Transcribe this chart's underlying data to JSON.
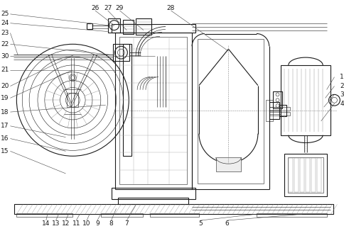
{
  "bg_color": "#ffffff",
  "line_color": "#1a1a1a",
  "gray_line": "#888888",
  "light_gray": "#cccccc",
  "fig_width": 4.85,
  "fig_height": 3.26,
  "dpi": 100,
  "left_labels": [
    [
      "25",
      7,
      308
    ],
    [
      "24",
      7,
      295
    ],
    [
      "23",
      7,
      281
    ],
    [
      "22",
      7,
      265
    ],
    [
      "30",
      7,
      248
    ],
    [
      "21",
      7,
      228
    ],
    [
      "20",
      7,
      205
    ],
    [
      "19",
      7,
      188
    ],
    [
      "18",
      7,
      168
    ],
    [
      "17",
      7,
      148
    ],
    [
      "16",
      7,
      130
    ],
    [
      "15",
      7,
      112
    ]
  ],
  "bottom_labels": [
    [
      "14",
      60,
      9
    ],
    [
      "13",
      74,
      9
    ],
    [
      "12",
      88,
      9
    ],
    [
      "11",
      103,
      9
    ],
    [
      "10",
      118,
      9
    ],
    [
      "9",
      133,
      9
    ],
    [
      "8",
      153,
      9
    ],
    [
      "7",
      175,
      9
    ]
  ],
  "top_labels": [
    [
      "26",
      130,
      316
    ],
    [
      "27",
      148,
      316
    ],
    [
      "29",
      165,
      316
    ],
    [
      "28",
      238,
      316
    ]
  ],
  "right_labels": [
    [
      "1",
      479,
      218
    ],
    [
      "2",
      479,
      205
    ],
    [
      "3",
      479,
      193
    ],
    [
      "4",
      479,
      180
    ]
  ],
  "br_labels": [
    [
      "5",
      280,
      9
    ],
    [
      "6",
      318,
      9
    ]
  ]
}
